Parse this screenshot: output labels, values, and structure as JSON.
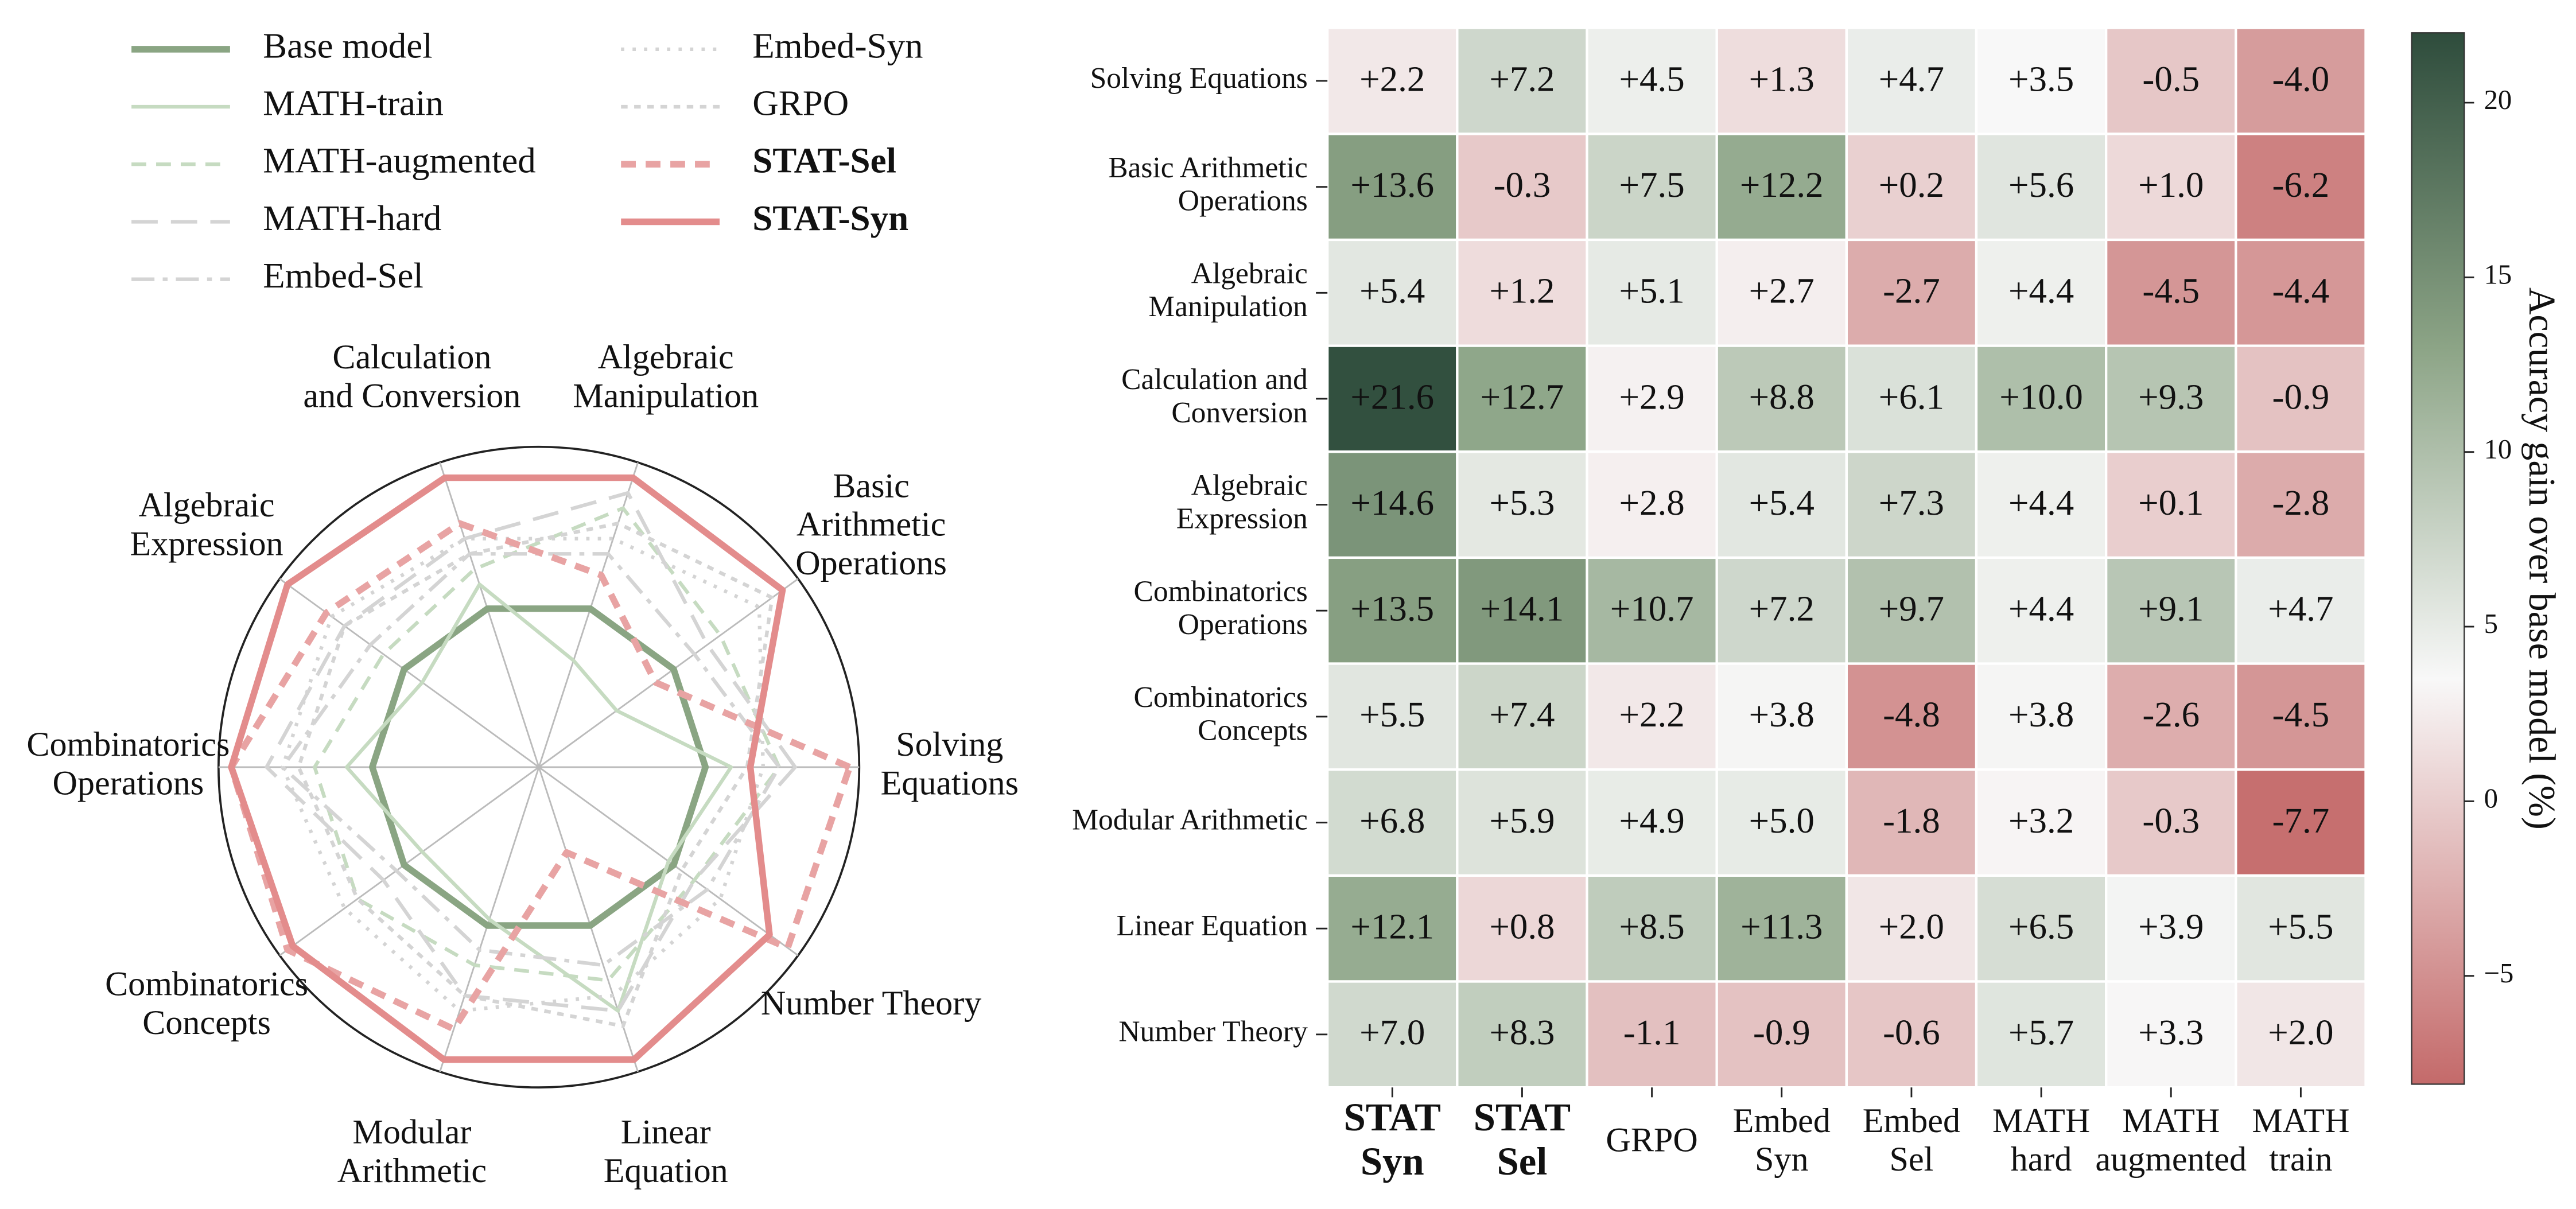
{
  "chart_data": [
    {
      "type": "radar",
      "categories": [
        "Solving\nEquations",
        "Basic\nArithmetic\nOperations",
        "Algebraic\nManipulation",
        "Calculation\nand Conversion",
        "Algebraic\nExpression",
        "Combinatorics\nOperations",
        "Combinatorics\nConcepts",
        "Modular\nArithmetic",
        "Linear\nEquation",
        "Number Theory"
      ],
      "rlim": [
        0,
        1
      ],
      "series": [
        {
          "name": "Base model",
          "color": "#8aa583",
          "linestyle": "solid",
          "weight": "heavy",
          "values": [
            0.52,
            0.52,
            0.52,
            0.52,
            0.52,
            0.52,
            0.52,
            0.52,
            0.52,
            0.52
          ]
        },
        {
          "name": "MATH-train",
          "color": "#c6dbc1",
          "linestyle": "solid",
          "weight": "light",
          "values": [
            0.6,
            0.3,
            0.35,
            0.6,
            0.45,
            0.6,
            0.45,
            0.5,
            0.8,
            0.5
          ]
        },
        {
          "name": "MATH-augmented",
          "color": "#c6dbc1",
          "linestyle": "dashed",
          "weight": "light",
          "values": [
            0.75,
            0.7,
            0.85,
            0.65,
            0.6,
            0.7,
            0.7,
            0.65,
            0.7,
            0.6
          ]
        },
        {
          "name": "MATH-hard",
          "color": "#d4d4d4",
          "linestyle": "longdash",
          "weight": "light",
          "values": [
            0.8,
            0.65,
            0.9,
            0.75,
            0.75,
            0.85,
            0.6,
            0.75,
            0.8,
            0.6
          ]
        },
        {
          "name": "Embed-Sel",
          "color": "#d4d4d4",
          "linestyle": "dashdot",
          "weight": "light",
          "values": [
            0.75,
            0.6,
            0.7,
            0.7,
            0.65,
            0.8,
            0.55,
            0.6,
            0.65,
            0.65
          ]
        },
        {
          "name": "Embed-Syn",
          "color": "#d4d4d4",
          "linestyle": "dotted",
          "weight": "light",
          "values": [
            0.7,
            0.85,
            0.75,
            0.75,
            0.8,
            0.8,
            0.75,
            0.8,
            0.75,
            0.7
          ]
        },
        {
          "name": "GRPO",
          "color": "#d4d4d4",
          "linestyle": "densedot",
          "weight": "light",
          "values": [
            0.65,
            0.9,
            0.8,
            0.7,
            0.75,
            0.75,
            0.7,
            0.75,
            0.85,
            0.55
          ]
        },
        {
          "name": "STAT-Sel",
          "color": "#e8a3a3",
          "linestyle": "dashed",
          "weight": "heavy",
          "label_weight": "bold",
          "values": [
            0.97,
            0.45,
            0.63,
            0.8,
            0.82,
            0.96,
            0.97,
            0.86,
            0.28,
            0.96
          ]
        },
        {
          "name": "STAT-Syn",
          "color": "#e38c8c",
          "linestyle": "solid",
          "weight": "heavy",
          "label_weight": "bold",
          "values": [
            0.66,
            0.94,
            0.95,
            0.95,
            0.97,
            0.96,
            0.95,
            0.96,
            0.96,
            0.89
          ]
        }
      ]
    },
    {
      "type": "heatmap",
      "rows": [
        "Solving Equations",
        "Basic Arithmetic\nOperations",
        "Algebraic\nManipulation",
        "Calculation and\nConversion",
        "Algebraic\nExpression",
        "Combinatorics\nOperations",
        "Combinatorics\nConcepts",
        "Modular Arithmetic",
        "Linear Equation",
        "Number Theory"
      ],
      "columns": [
        "STAT\nSyn",
        "STAT\nSel",
        "GRPO",
        "Embed\nSyn",
        "Embed\nSel",
        "MATH\nhard",
        "MATH\naugmented",
        "MATH\ntrain"
      ],
      "column_bold": [
        true,
        true,
        false,
        false,
        false,
        false,
        false,
        false
      ],
      "values": [
        [
          2.2,
          7.2,
          4.5,
          1.3,
          4.7,
          3.5,
          -0.5,
          -4.0
        ],
        [
          13.6,
          -0.3,
          7.5,
          12.2,
          0.2,
          5.6,
          1.0,
          -6.2
        ],
        [
          5.4,
          1.2,
          5.1,
          2.7,
          -2.7,
          4.4,
          -4.5,
          -4.4
        ],
        [
          21.6,
          12.7,
          2.9,
          8.8,
          6.1,
          10.0,
          9.3,
          -0.9
        ],
        [
          14.6,
          5.3,
          2.8,
          5.4,
          7.3,
          4.4,
          0.1,
          -2.8
        ],
        [
          13.5,
          14.1,
          10.7,
          7.2,
          9.7,
          4.4,
          9.1,
          4.7
        ],
        [
          5.5,
          7.4,
          2.2,
          3.8,
          -4.8,
          3.8,
          -2.6,
          -4.5
        ],
        [
          6.8,
          5.9,
          4.9,
          5.0,
          -1.8,
          3.2,
          -0.3,
          -7.7
        ],
        [
          12.1,
          0.8,
          8.5,
          11.3,
          2.0,
          6.5,
          3.9,
          5.5
        ],
        [
          7.0,
          8.3,
          -1.1,
          -0.9,
          -0.6,
          5.7,
          3.3,
          2.0
        ]
      ],
      "value_labels": [
        [
          "+2.2",
          "+7.2",
          "+4.5",
          "+1.3",
          "+4.7",
          "+3.5",
          "-0.5",
          "-4.0"
        ],
        [
          "+13.6",
          "-0.3",
          "+7.5",
          "+12.2",
          "+0.2",
          "+5.6",
          "+1.0",
          "-6.2"
        ],
        [
          "+5.4",
          "+1.2",
          "+5.1",
          "+2.7",
          "-2.7",
          "+4.4",
          "-4.5",
          "-4.4"
        ],
        [
          "+21.6",
          "+12.7",
          "+2.9",
          "+8.8",
          "+6.1",
          "+10.0",
          "+9.3",
          "-0.9"
        ],
        [
          "+14.6",
          "+5.3",
          "+2.8",
          "+5.4",
          "+7.3",
          "+4.4",
          "+0.1",
          "-2.8"
        ],
        [
          "+13.5",
          "+14.1",
          "+10.7",
          "+7.2",
          "+9.7",
          "+4.4",
          "+9.1",
          "+4.7"
        ],
        [
          "+5.5",
          "+7.4",
          "+2.2",
          "+3.8",
          "-4.8",
          "+3.8",
          "-2.6",
          "-4.5"
        ],
        [
          "+6.8",
          "+5.9",
          "+4.9",
          "+5.0",
          "-1.8",
          "+3.2",
          "-0.3",
          "-7.7"
        ],
        [
          "+12.1",
          "+0.8",
          "+8.5",
          "+11.3",
          "+2.0",
          "+6.5",
          "+3.9",
          "+5.5"
        ],
        [
          "+7.0",
          "+8.3",
          "-1.1",
          "-0.9",
          "-0.6",
          "+5.7",
          "+3.3",
          "+2.0"
        ]
      ],
      "colorbar_label": "Accuracy gain over base model (%)",
      "clim": [
        -8.1,
        22
      ],
      "cticks": [
        {
          "value": -5,
          "label": "−5"
        },
        0,
        5,
        10,
        15,
        20
      ],
      "colormap": [
        {
          "value": -8.1,
          "color": "#c46a6a"
        },
        {
          "value": 3.5,
          "color": "#f8f8f8"
        },
        {
          "value": 13,
          "color": "#8ca486"
        },
        {
          "value": 22,
          "color": "#2e4c3c"
        }
      ]
    }
  ]
}
